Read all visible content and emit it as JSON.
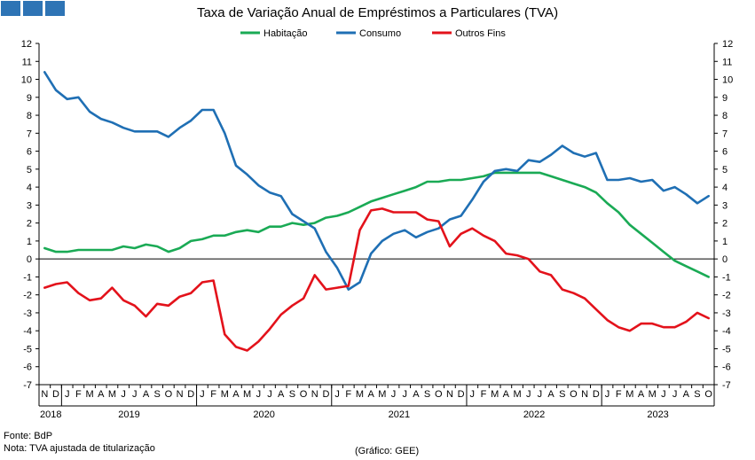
{
  "chart_data": {
    "type": "line",
    "title": "Taxa de Variação Anual de Empréstimos a Particulares (TVA)",
    "ylim": [
      -7,
      12
    ],
    "yticks": [
      -7,
      -6,
      -5,
      -4,
      -3,
      -2,
      -1,
      0,
      1,
      2,
      3,
      4,
      5,
      6,
      7,
      8,
      9,
      10,
      11,
      12
    ],
    "grid": false,
    "legend": "top-center",
    "month_labels": [
      "N",
      "D",
      "J",
      "F",
      "M",
      "A",
      "M",
      "J",
      "J",
      "A",
      "S",
      "O",
      "N",
      "D",
      "J",
      "F",
      "M",
      "A",
      "M",
      "J",
      "J",
      "A",
      "S",
      "O",
      "N",
      "D",
      "J",
      "F",
      "M",
      "A",
      "M",
      "J",
      "J",
      "A",
      "S",
      "O",
      "N",
      "D",
      "J",
      "F",
      "M",
      "A",
      "M",
      "J",
      "J",
      "A",
      "S",
      "O",
      "N",
      "D",
      "J",
      "F",
      "M",
      "A",
      "M",
      "J",
      "J",
      "A",
      "S",
      "O"
    ],
    "year_labels": [
      "2018",
      "2019",
      "2020",
      "2021",
      "2022",
      "2023"
    ],
    "series": [
      {
        "name": "Habitação",
        "color": "#1aaa55",
        "values": [
          0.6,
          0.4,
          0.4,
          0.5,
          0.5,
          0.5,
          0.5,
          0.7,
          0.6,
          0.8,
          0.7,
          0.4,
          0.6,
          1.0,
          1.1,
          1.3,
          1.3,
          1.5,
          1.6,
          1.5,
          1.8,
          1.8,
          2.0,
          1.9,
          2.0,
          2.3,
          2.4,
          2.6,
          2.9,
          3.2,
          3.4,
          3.6,
          3.8,
          4.0,
          4.3,
          4.3,
          4.4,
          4.4,
          4.5,
          4.6,
          4.8,
          4.8,
          4.8,
          4.8,
          4.8,
          4.6,
          4.4,
          4.2,
          4.0,
          3.7,
          3.1,
          2.6,
          1.9,
          1.4,
          0.9,
          0.4,
          -0.1,
          -0.4,
          -0.7,
          -1.0
        ]
      },
      {
        "name": "Consumo",
        "color": "#1f6fb4",
        "values": [
          10.4,
          9.4,
          8.9,
          9.0,
          8.2,
          7.8,
          7.6,
          7.3,
          7.1,
          7.1,
          7.1,
          6.8,
          7.3,
          7.7,
          8.3,
          8.3,
          7.0,
          5.2,
          4.7,
          4.1,
          3.7,
          3.5,
          2.5,
          2.1,
          1.7,
          0.4,
          -0.5,
          -1.7,
          -1.3,
          0.3,
          1.0,
          1.4,
          1.6,
          1.2,
          1.5,
          1.7,
          2.2,
          2.4,
          3.3,
          4.3,
          4.9,
          5.0,
          4.9,
          5.5,
          5.4,
          5.8,
          6.3,
          5.9,
          5.7,
          5.9,
          4.4,
          4.4,
          4.5,
          4.3,
          4.4,
          3.8,
          4.0,
          3.6,
          3.1,
          3.5
        ]
      },
      {
        "name": "Outros Fins",
        "color": "#e3121b",
        "values": [
          -1.6,
          -1.4,
          -1.3,
          -1.9,
          -2.3,
          -2.2,
          -1.6,
          -2.3,
          -2.6,
          -3.2,
          -2.5,
          -2.6,
          -2.1,
          -1.9,
          -1.3,
          -1.2,
          -4.2,
          -4.9,
          -5.1,
          -4.6,
          -3.9,
          -3.1,
          -2.6,
          -2.2,
          -0.9,
          -1.7,
          -1.6,
          -1.5,
          1.6,
          2.7,
          2.8,
          2.6,
          2.6,
          2.6,
          2.2,
          2.1,
          0.7,
          1.4,
          1.7,
          1.3,
          1.0,
          0.3,
          0.2,
          0.0,
          -0.7,
          -0.9,
          -1.7,
          -1.9,
          -2.2,
          -2.8,
          -3.4,
          -3.8,
          -4.0,
          -3.6,
          -3.6,
          -3.8,
          -3.8,
          -3.5,
          -3.0,
          -3.3
        ]
      }
    ]
  },
  "footer": {
    "source": "Fonte: BdP",
    "note": "Nota: TVA ajustada de titularização",
    "credit": "(Gráfico: GEE)"
  }
}
